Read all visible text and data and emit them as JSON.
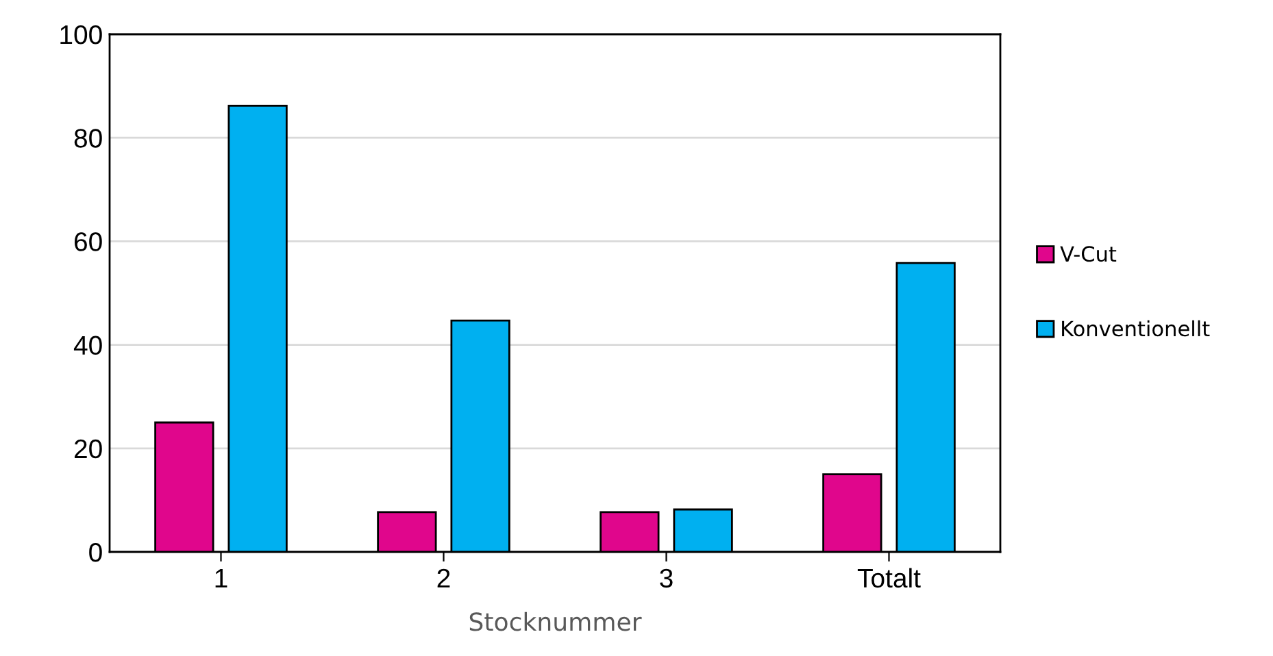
{
  "chart_data": {
    "type": "bar",
    "xlabel": "Stocknummer",
    "categories": [
      "1",
      "2",
      "3",
      "Totalt"
    ],
    "series": [
      {
        "name": "V-Cut",
        "color": "#e0068c",
        "values": [
          25,
          7.7,
          7.7,
          15
        ]
      },
      {
        "name": "Konventionellt",
        "color": "#00b0f0",
        "values": [
          86.2,
          44.7,
          8.2,
          55.8
        ]
      }
    ],
    "ylim": [
      0,
      100
    ],
    "yticks": [
      0,
      20,
      40,
      60,
      80,
      100
    ],
    "grid": "y",
    "legend": "right"
  }
}
